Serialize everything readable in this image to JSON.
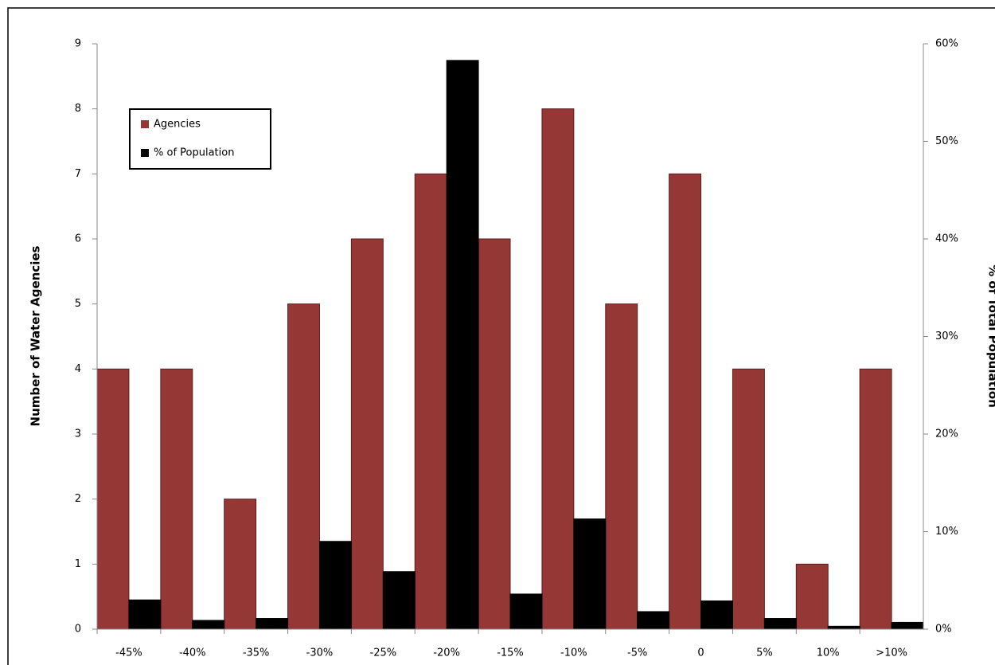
{
  "chart_data": {
    "type": "bar",
    "y_label": "Number of Water Agencies",
    "y2_label": "% of Total Population",
    "categories": [
      "-45%",
      "-40%",
      "-35%",
      "-30%",
      "-25%",
      "-20%",
      "-15%",
      "-10%",
      "-5%",
      "0",
      "5%",
      "10%",
      ">10%"
    ],
    "series": [
      {
        "name": "Agencies",
        "color": "#953735",
        "values": [
          4,
          4,
          2,
          5,
          6,
          7,
          6,
          8,
          5,
          7,
          4,
          1,
          4
        ]
      },
      {
        "name": "% of Population",
        "color": "#000000",
        "axis": "y2",
        "values": [
          3.0,
          0.9,
          1.1,
          9.0,
          5.9,
          58.3,
          3.6,
          11.3,
          1.8,
          2.9,
          1.1,
          0.3,
          0.7
        ]
      }
    ],
    "ylim": [
      0,
      9
    ],
    "yticks": [
      0,
      1,
      2,
      3,
      4,
      5,
      6,
      7,
      8,
      9
    ],
    "y2lim": [
      0,
      60
    ],
    "y2ticks": [
      {
        "value": 0,
        "label": "0%"
      },
      {
        "value": 10,
        "label": "10%"
      },
      {
        "value": 20,
        "label": "20%"
      },
      {
        "value": 30,
        "label": "30%"
      },
      {
        "value": 40,
        "label": "40%"
      },
      {
        "value": 50,
        "label": "50%"
      },
      {
        "value": 60,
        "label": "60%"
      }
    ],
    "legend": "upper left",
    "grid": false
  }
}
